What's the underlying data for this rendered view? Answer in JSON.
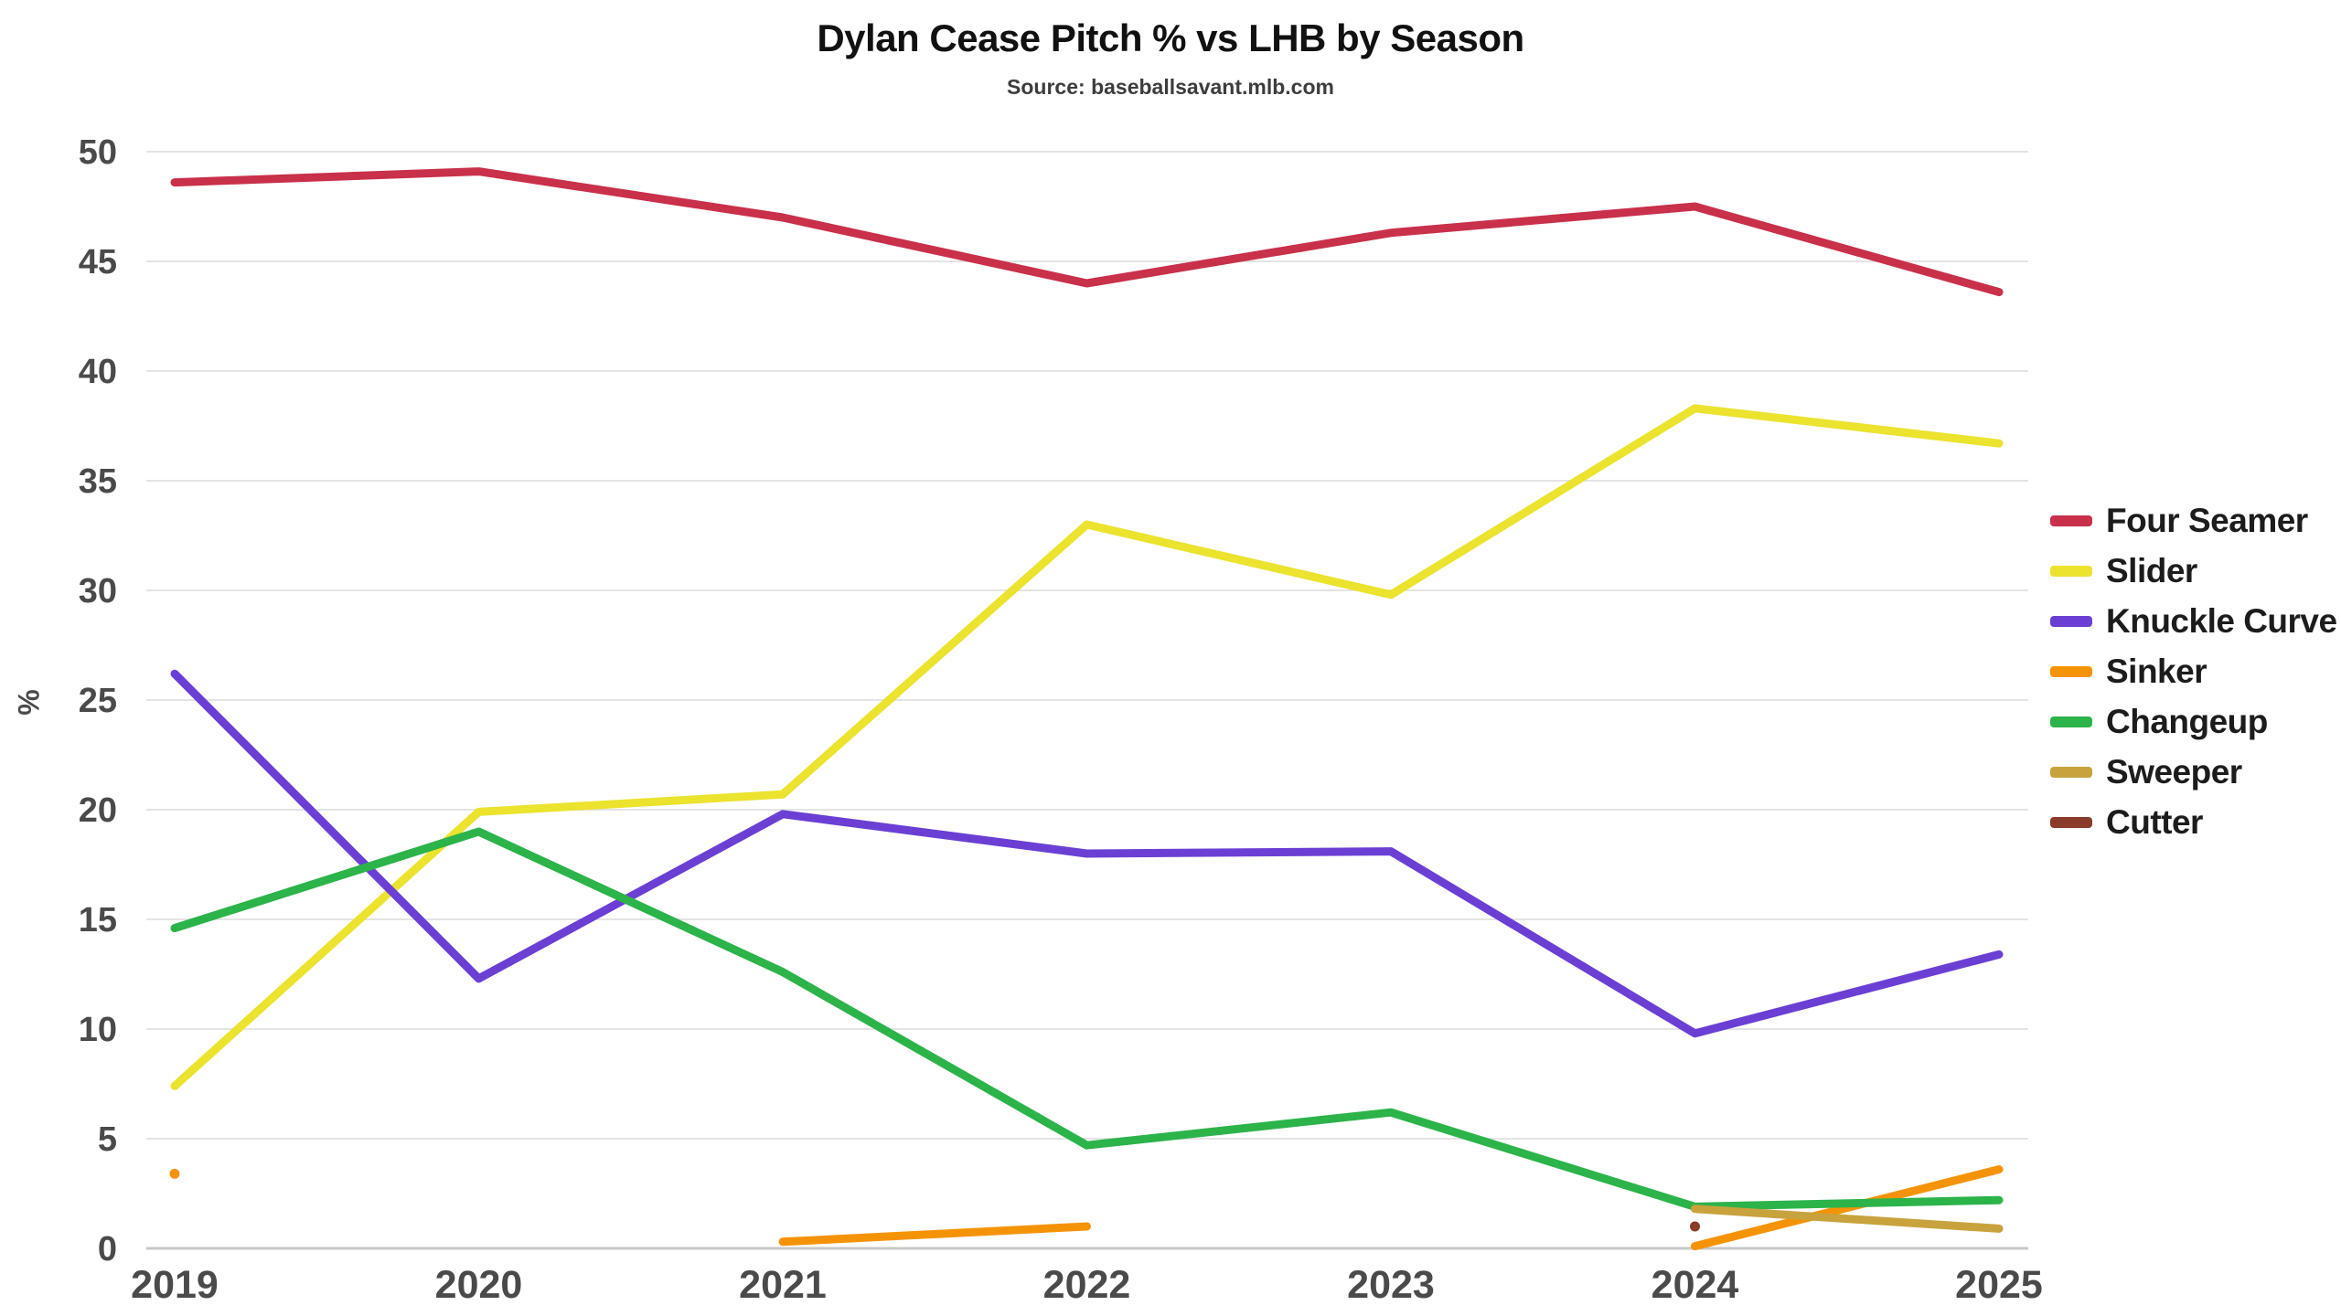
{
  "chart_data": {
    "type": "line",
    "title": "Dylan Cease Pitch % vs LHB by Season",
    "subtitle": "Source: baseballsavant.mlb.com",
    "xlabel": "",
    "ylabel": "%",
    "x": [
      2019,
      2020,
      2021,
      2022,
      2023,
      2024,
      2025
    ],
    "ylim": [
      0,
      50
    ],
    "ytick_step": 5,
    "grid": "horizontal",
    "legend_position": "right",
    "colors": {
      "grid": "#e4e4e4",
      "axis": "#c7c7c7",
      "tick_text": "#4a4a4a"
    },
    "series": [
      {
        "name": "Four Seamer",
        "color": "#c9304a",
        "values": [
          48.6,
          49.1,
          47.0,
          44.0,
          46.3,
          47.5,
          43.6
        ]
      },
      {
        "name": "Slider",
        "color": "#ebe32e",
        "values": [
          7.4,
          19.9,
          20.7,
          33.0,
          29.8,
          38.3,
          36.7
        ]
      },
      {
        "name": "Knuckle Curve",
        "color": "#6b3fd4",
        "values": [
          26.2,
          12.3,
          19.8,
          18.0,
          18.1,
          9.8,
          13.4
        ]
      },
      {
        "name": "Sinker",
        "color": "#f59307",
        "values": [
          3.4,
          null,
          0.3,
          1.0,
          null,
          0.1,
          3.6
        ]
      },
      {
        "name": "Changeup",
        "color": "#2cb34a",
        "values": [
          14.6,
          19.0,
          12.6,
          4.7,
          6.2,
          1.9,
          2.2
        ]
      },
      {
        "name": "Sweeper",
        "color": "#c8a23c",
        "values": [
          null,
          null,
          null,
          null,
          null,
          1.8,
          0.9
        ]
      },
      {
        "name": "Cutter",
        "color": "#8a3b2a",
        "values": [
          null,
          null,
          null,
          null,
          null,
          1.0,
          null
        ]
      }
    ]
  }
}
